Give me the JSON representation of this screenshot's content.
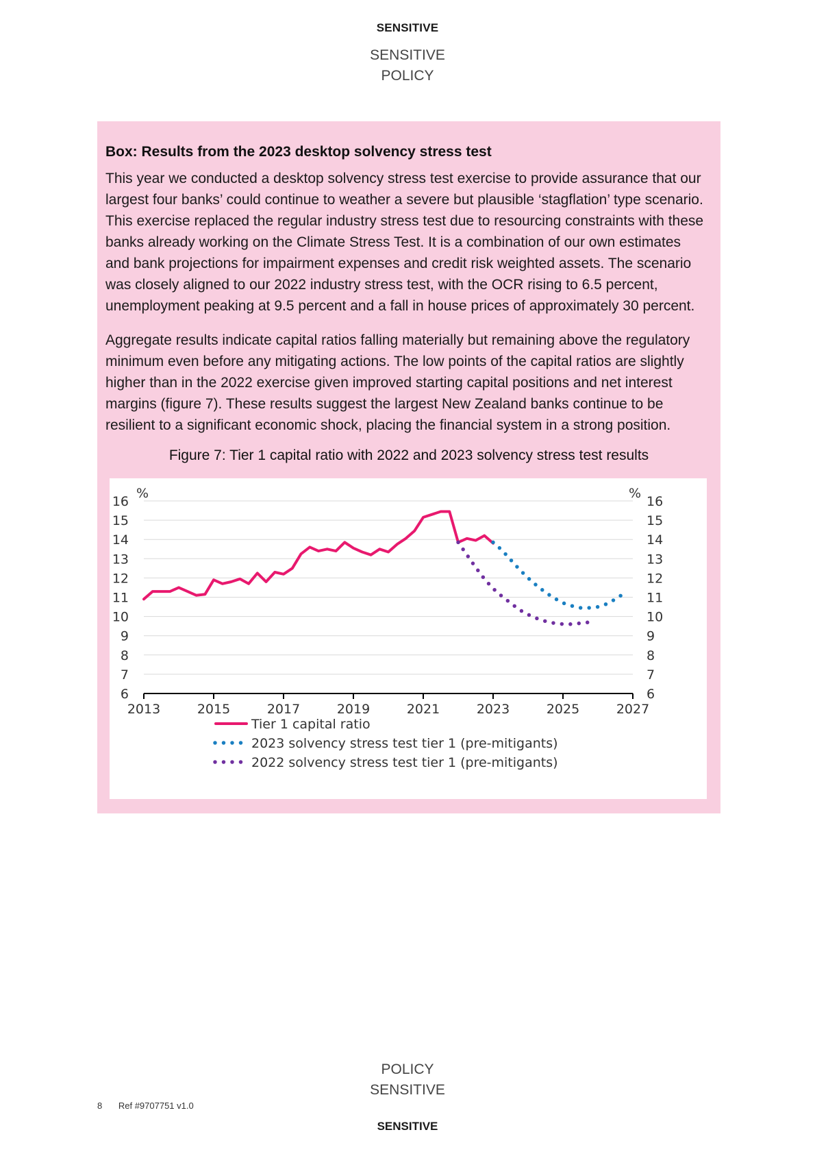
{
  "classification": "SENSITIVE",
  "header_lines": [
    "SENSITIVE",
    "POLICY"
  ],
  "footer_lines": [
    "POLICY",
    "SENSITIVE"
  ],
  "page_number": "8",
  "reference": "Ref #9707751 v1.0",
  "box": {
    "title": "Box: Results from the 2023 desktop solvency stress test",
    "paragraphs": [
      "This year we conducted a desktop solvency stress test exercise to provide assurance that our largest four banks’ could continue to weather a severe but plausible ‘stagflation’ type scenario. This exercise replaced the regular industry stress test due to resourcing constraints with these banks already working on the Climate Stress Test. It is a combination of our own estimates and bank projections for impairment expenses and credit risk weighted assets. The scenario was closely aligned to our 2022 industry stress test, with the OCR rising to 6.5 percent, unemployment peaking at 9.5 percent and a fall in house prices of approximately 30 percent.",
      "Aggregate results indicate capital ratios falling materially but remaining above the regulatory minimum even before any mitigating actions. The low points of the capital ratios are slightly higher than in the 2022 exercise given improved starting capital positions and net interest margins (figure 7). These results suggest the largest New Zealand banks continue to be resilient to a significant economic shock, placing the financial system in a strong position."
    ],
    "figure_title": "Figure 7: Tier 1 capital ratio with 2022 and 2023 solvency stress test results"
  },
  "chart_data": {
    "type": "line",
    "title": "Figure 7: Tier 1 capital ratio with 2022 and 2023 solvency stress test results",
    "ylabel_left": "%",
    "ylabel_right": "%",
    "ylim": [
      6,
      16
    ],
    "yticks": [
      6,
      7,
      8,
      9,
      10,
      11,
      12,
      13,
      14,
      15,
      16
    ],
    "xlim": [
      2013,
      2027
    ],
    "xticks": [
      2013,
      2015,
      2017,
      2019,
      2021,
      2023,
      2025,
      2027
    ],
    "grid": true,
    "legend_position": "bottom",
    "series": [
      {
        "name": "Tier 1 capital ratio",
        "style": "solid",
        "color": "#e8196e",
        "points": [
          [
            2013.0,
            10.9
          ],
          [
            2013.25,
            11.3
          ],
          [
            2013.5,
            11.3
          ],
          [
            2013.75,
            11.3
          ],
          [
            2014.0,
            11.5
          ],
          [
            2014.25,
            11.3
          ],
          [
            2014.5,
            11.1
          ],
          [
            2014.75,
            11.15
          ],
          [
            2015.0,
            11.9
          ],
          [
            2015.25,
            11.7
          ],
          [
            2015.5,
            11.8
          ],
          [
            2015.75,
            11.95
          ],
          [
            2016.0,
            11.7
          ],
          [
            2016.25,
            12.25
          ],
          [
            2016.5,
            11.8
          ],
          [
            2016.75,
            12.3
          ],
          [
            2017.0,
            12.2
          ],
          [
            2017.25,
            12.5
          ],
          [
            2017.5,
            13.25
          ],
          [
            2017.75,
            13.6
          ],
          [
            2018.0,
            13.4
          ],
          [
            2018.25,
            13.5
          ],
          [
            2018.5,
            13.4
          ],
          [
            2018.75,
            13.85
          ],
          [
            2019.0,
            13.55
          ],
          [
            2019.25,
            13.35
          ],
          [
            2019.5,
            13.2
          ],
          [
            2019.75,
            13.5
          ],
          [
            2020.0,
            13.35
          ],
          [
            2020.25,
            13.75
          ],
          [
            2020.5,
            14.05
          ],
          [
            2020.75,
            14.45
          ],
          [
            2021.0,
            15.15
          ],
          [
            2021.25,
            15.3
          ],
          [
            2021.5,
            15.45
          ],
          [
            2021.75,
            15.45
          ],
          [
            2022.0,
            13.85
          ],
          [
            2022.25,
            14.05
          ],
          [
            2022.5,
            13.95
          ],
          [
            2022.75,
            14.2
          ],
          [
            2023.0,
            13.8
          ]
        ]
      },
      {
        "name": "2023 solvency stress test tier 1 (pre-mitigants)",
        "style": "dotted",
        "color": "#1a7fc1",
        "points": [
          [
            2023.0,
            13.85
          ],
          [
            2023.25,
            13.45
          ],
          [
            2023.5,
            12.95
          ],
          [
            2023.75,
            12.45
          ],
          [
            2024.0,
            12.0
          ],
          [
            2024.25,
            11.6
          ],
          [
            2024.5,
            11.25
          ],
          [
            2024.75,
            10.95
          ],
          [
            2025.0,
            10.7
          ],
          [
            2025.25,
            10.55
          ],
          [
            2025.5,
            10.45
          ],
          [
            2025.75,
            10.45
          ],
          [
            2026.0,
            10.5
          ],
          [
            2026.25,
            10.65
          ],
          [
            2026.5,
            10.9
          ],
          [
            2026.75,
            11.2
          ]
        ]
      },
      {
        "name": "2022 solvency stress test tier 1 (pre-mitigants)",
        "style": "dotted",
        "color": "#7030a0",
        "points": [
          [
            2022.0,
            13.85
          ],
          [
            2022.25,
            13.2
          ],
          [
            2022.5,
            12.55
          ],
          [
            2022.75,
            11.95
          ],
          [
            2023.0,
            11.45
          ],
          [
            2023.25,
            11.05
          ],
          [
            2023.5,
            10.7
          ],
          [
            2023.75,
            10.35
          ],
          [
            2024.0,
            10.1
          ],
          [
            2024.25,
            9.9
          ],
          [
            2024.5,
            9.75
          ],
          [
            2024.75,
            9.65
          ],
          [
            2025.0,
            9.6
          ],
          [
            2025.25,
            9.6
          ],
          [
            2025.5,
            9.65
          ],
          [
            2025.75,
            9.7
          ]
        ]
      }
    ]
  }
}
